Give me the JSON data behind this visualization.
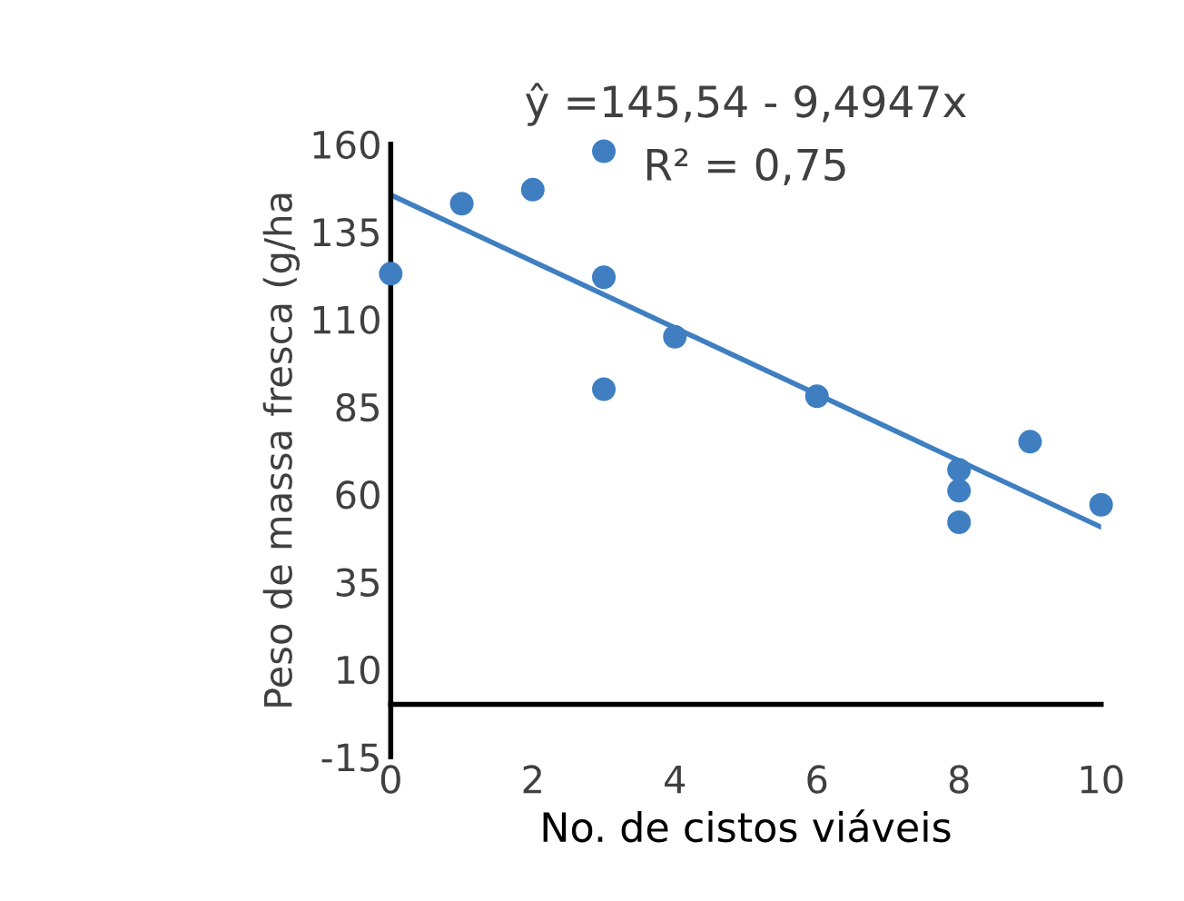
{
  "chart_data": {
    "type": "scatter",
    "xlabel": "No. de cistos viáveis",
    "ylabel": "Peso de massa fresca (g/ha",
    "xlim": [
      0,
      10
    ],
    "xticks": [
      0,
      2,
      4,
      6,
      8,
      10
    ],
    "ylim": [
      -15,
      160
    ],
    "yticks": [
      -15,
      10,
      35,
      60,
      85,
      110,
      135,
      160
    ],
    "grid": false,
    "legend": false,
    "annotations": [
      "ŷ =145,54 - 9,4947x",
      "R² = 0,75"
    ],
    "series": [
      {
        "marker": "circle",
        "color": "#3f7fc1",
        "x": [
          0,
          1,
          2,
          3,
          3,
          3,
          4,
          6,
          8,
          8,
          8,
          9,
          10
        ],
        "values": [
          123,
          143,
          147,
          158,
          122,
          90,
          105,
          88,
          67,
          61,
          52,
          75,
          57
        ]
      },
      {
        "type": "line",
        "marker": "none",
        "color": "#3f7fc1",
        "x": [
          0,
          10
        ],
        "values": [
          145.5,
          50.6
        ]
      }
    ]
  }
}
